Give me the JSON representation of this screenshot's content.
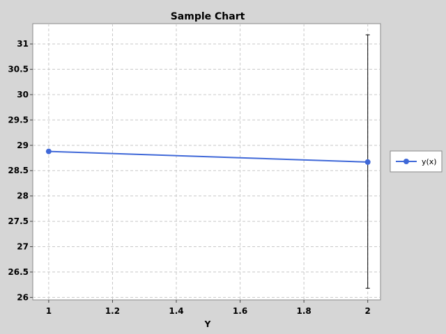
{
  "chart_data": {
    "type": "line",
    "title": "Sample Chart",
    "xlabel": "Y",
    "ylabel": "",
    "xlim": [
      0.95,
      2.04
    ],
    "ylim": [
      25.95,
      31.4
    ],
    "xticks": [
      1,
      1.2,
      1.4,
      1.6,
      1.8,
      2
    ],
    "xtick_labels": [
      "1",
      "1.2",
      "1.4",
      "1.6",
      "1.8",
      "2"
    ],
    "yticks": [
      26,
      26.5,
      27,
      27.5,
      28,
      28.5,
      29,
      29.5,
      30,
      30.5,
      31
    ],
    "ytick_labels": [
      "26",
      "26.5",
      "27",
      "27.5",
      "28",
      "28.5",
      "29",
      "29.5",
      "30",
      "30.5",
      "31"
    ],
    "grid": true,
    "legend_position": "right",
    "series": [
      {
        "name": "y(x)",
        "color": "#3f68d8",
        "x": [
          1,
          2
        ],
        "y": [
          28.88,
          28.67
        ],
        "error_bars": [
          null,
          [
            26.18,
            31.18
          ]
        ]
      }
    ]
  }
}
